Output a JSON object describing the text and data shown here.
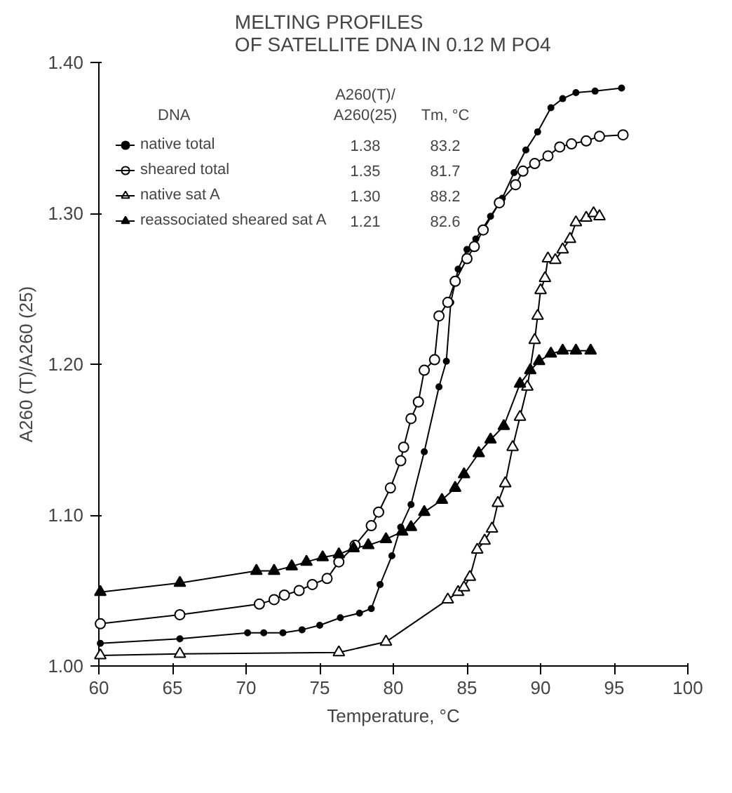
{
  "chart_data": {
    "type": "line",
    "title": "MELTING PROFILES\nOF SATELLITE DNA IN 0.12 M PO4",
    "xlabel": "Temperature, °C",
    "ylabel": "A260 (T)/A260 (25)",
    "xlim": [
      60,
      100
    ],
    "xticks": [
      60,
      65,
      70,
      75,
      80,
      85,
      90,
      95,
      100
    ],
    "ylim": [
      1.0,
      1.4
    ],
    "yticks": [
      {
        "value": 1.0,
        "label": "1.00"
      },
      {
        "value": 1.1,
        "label": "1.10"
      },
      {
        "value": 1.2,
        "label": "1.20"
      },
      {
        "value": 1.3,
        "label": "1.30"
      },
      {
        "value": 1.4,
        "label": "1.40"
      }
    ],
    "grid": false,
    "legend": "top left",
    "annotations": [
      "DNA",
      "A260(T)/\nA260(25)",
      "Tm, °C",
      "1.38",
      "83.2",
      "1.35",
      "81.7",
      "1.30",
      "88.2",
      "1.21",
      "82.6"
    ],
    "series": [
      {
        "name": "native total",
        "color": "#000000",
        "marker": "circle",
        "x": [
          60.1,
          65.5,
          70.1,
          71.2,
          72.5,
          73.8,
          75.0,
          76.4,
          77.7,
          78.5,
          79.1,
          79.9,
          80.5,
          81.2,
          82.1,
          83.1,
          83.6,
          83.9,
          84.4,
          85.0,
          85.6,
          86.6,
          87.4,
          88.2,
          89.0,
          89.8,
          90.7,
          91.5,
          92.4,
          93.7,
          95.5
        ],
        "values": [
          1.015,
          1.018,
          1.022,
          1.022,
          1.022,
          1.024,
          1.027,
          1.032,
          1.035,
          1.038,
          1.054,
          1.073,
          1.092,
          1.107,
          1.142,
          1.185,
          1.202,
          1.241,
          1.263,
          1.276,
          1.283,
          1.298,
          1.31,
          1.327,
          1.342,
          1.354,
          1.37,
          1.376,
          1.38,
          1.381,
          1.383
        ]
      },
      {
        "name": "sheared total",
        "color": "#ffffff",
        "marker": "circle",
        "x": [
          60.1,
          65.5,
          70.9,
          71.9,
          72.6,
          73.6,
          74.5,
          75.5,
          76.3,
          77.4,
          78.5,
          79.0,
          79.8,
          80.5,
          80.7,
          81.2,
          81.7,
          82.1,
          82.8,
          83.1,
          83.7,
          84.2,
          85.0,
          85.5,
          86.1,
          87.2,
          88.3,
          88.8,
          89.6,
          90.5,
          91.3,
          92.1,
          93.1,
          94.0,
          95.6
        ],
        "values": [
          1.028,
          1.034,
          1.041,
          1.044,
          1.047,
          1.05,
          1.054,
          1.058,
          1.069,
          1.08,
          1.093,
          1.102,
          1.118,
          1.136,
          1.145,
          1.164,
          1.175,
          1.196,
          1.203,
          1.232,
          1.241,
          1.255,
          1.27,
          1.278,
          1.289,
          1.307,
          1.319,
          1.328,
          1.333,
          1.338,
          1.344,
          1.346,
          1.348,
          1.351,
          1.352
        ]
      },
      {
        "name": "native sat A",
        "color": "#ffffff",
        "marker": "triangle",
        "x": [
          60.1,
          65.5,
          76.3,
          79.5,
          83.7,
          84.4,
          84.8,
          85.2,
          85.7,
          86.2,
          86.7,
          87.1,
          87.6,
          88.1,
          88.6,
          89.1,
          89.6,
          89.8,
          90.0,
          90.3,
          90.5,
          91.0,
          91.5,
          92.0,
          92.4,
          93.1,
          93.6,
          94.0
        ],
        "values": [
          1.007,
          1.008,
          1.009,
          1.016,
          1.044,
          1.049,
          1.052,
          1.059,
          1.077,
          1.083,
          1.091,
          1.108,
          1.121,
          1.145,
          1.165,
          1.185,
          1.216,
          1.232,
          1.249,
          1.257,
          1.27,
          1.269,
          1.276,
          1.283,
          1.294,
          1.297,
          1.3,
          1.298
        ]
      },
      {
        "name": "reassociated sheared sat A",
        "color": "#000000",
        "marker": "triangle",
        "x": [
          60.1,
          65.5,
          70.7,
          71.9,
          73.1,
          74.1,
          75.2,
          76.3,
          77.3,
          78.3,
          79.5,
          80.6,
          81.2,
          82.1,
          83.3,
          84.2,
          84.8,
          85.8,
          86.6,
          87.5,
          88.6,
          89.3,
          89.9,
          90.7,
          91.5,
          92.4,
          93.4
        ],
        "values": [
          1.049,
          1.055,
          1.063,
          1.063,
          1.066,
          1.069,
          1.072,
          1.074,
          1.078,
          1.08,
          1.084,
          1.089,
          1.092,
          1.102,
          1.11,
          1.118,
          1.127,
          1.141,
          1.15,
          1.159,
          1.187,
          1.196,
          1.202,
          1.207,
          1.209,
          1.209,
          1.209
        ]
      }
    ]
  }
}
